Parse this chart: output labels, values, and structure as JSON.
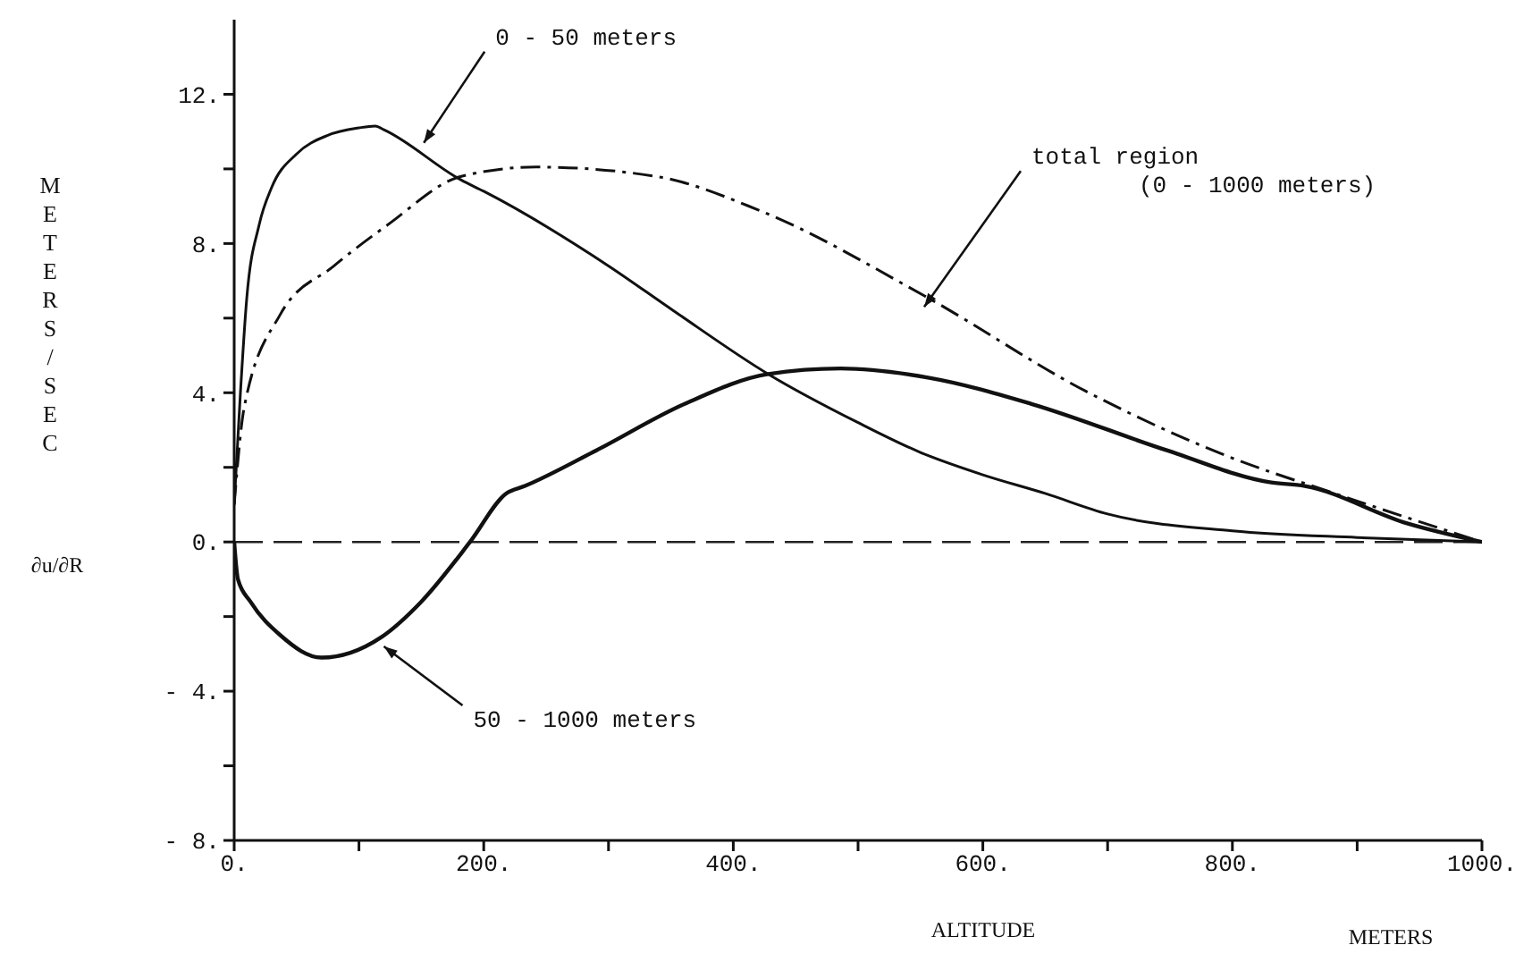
{
  "chart_data": {
    "type": "line",
    "ylabel": "METERS/SEC",
    "xlabel": "ALTITUDE",
    "xlim": [
      0,
      1000
    ],
    "ylim": [
      -8,
      14
    ],
    "xticks": [
      {
        "value": 0,
        "label": "0."
      },
      {
        "value": 100,
        "label": null
      },
      {
        "value": 200,
        "label": "200."
      },
      {
        "value": 300,
        "label": null
      },
      {
        "value": 400,
        "label": "400."
      },
      {
        "value": 500,
        "label": null
      },
      {
        "value": 600,
        "label": "600."
      },
      {
        "value": 700,
        "label": null
      },
      {
        "value": 800,
        "label": "800."
      },
      {
        "value": 900,
        "label": null
      },
      {
        "value": 1000,
        "label": "1000."
      }
    ],
    "yticks": [
      {
        "value": -8,
        "label": "- 8."
      },
      {
        "value": -6,
        "label": null
      },
      {
        "value": -4,
        "label": "- 4."
      },
      {
        "value": -2,
        "label": null
      },
      {
        "value": 0,
        "label": "0."
      },
      {
        "value": 2,
        "label": null
      },
      {
        "value": 4,
        "label": "4."
      },
      {
        "value": 6,
        "label": null
      },
      {
        "value": 8,
        "label": "8."
      },
      {
        "value": 10,
        "label": null
      },
      {
        "value": 12,
        "label": "12."
      }
    ],
    "grid": false,
    "legend": false,
    "marker": "none",
    "series": [
      {
        "color": "#111111",
        "line_style": "solid",
        "x": [
          0,
          5,
          10,
          20,
          30,
          50,
          75,
          100,
          113,
          120,
          182,
          200,
          300,
          352,
          428,
          500,
          550,
          600,
          650,
          700,
          800,
          900,
          1000
        ],
        "values": [
          1,
          4,
          6.5,
          8.5,
          9.5,
          10.4,
          10.9,
          11.1,
          11.15,
          11.05,
          9.7,
          9.4,
          7.4,
          6.2,
          4.5,
          3.2,
          2.4,
          1.8,
          1.3,
          0.75,
          0.3,
          0.12,
          0
        ]
      },
      {
        "color": "#111111",
        "line_style": "solid",
        "x": [
          0,
          3,
          13,
          37,
          70,
          118,
          150,
          189,
          218,
          233,
          290,
          361,
          428,
          486,
          557,
          639,
          748,
          830,
          858,
          940,
          1000
        ],
        "values": [
          0,
          -1,
          -1.6,
          -2.5,
          -3.1,
          -2.55,
          -1.6,
          0,
          1.3,
          1.5,
          2.45,
          3.7,
          4.5,
          4.65,
          4.4,
          3.7,
          2.45,
          1.6,
          1.5,
          0.5,
          0
        ]
      },
      {
        "color": "#111111",
        "line_style": "dashed",
        "x": [
          0,
          8,
          37,
          80,
          123,
          182,
          242,
          338,
          420,
          553,
          682,
          796,
          882,
          1000
        ],
        "values": [
          1,
          3.6,
          6.1,
          7.4,
          8.5,
          9.8,
          10.05,
          9.8,
          8.9,
          6.6,
          4.05,
          2.3,
          1.3,
          0
        ]
      }
    ],
    "ref_lines": [
      {
        "axis": "y",
        "value": 0,
        "label": null,
        "line_style": "dashed",
        "color": "#222222"
      }
    ],
    "annotations": [
      {
        "text": "0 - 50 meters",
        "x": 152,
        "y": 10.7
      },
      {
        "text": "total region\n(0 - 1000 meters)",
        "x": 553,
        "y": 6.3
      },
      {
        "text": "50 - 1000 meters",
        "x": 120,
        "y": -2.8
      },
      "∂u/∂R",
      "METERS"
    ]
  }
}
